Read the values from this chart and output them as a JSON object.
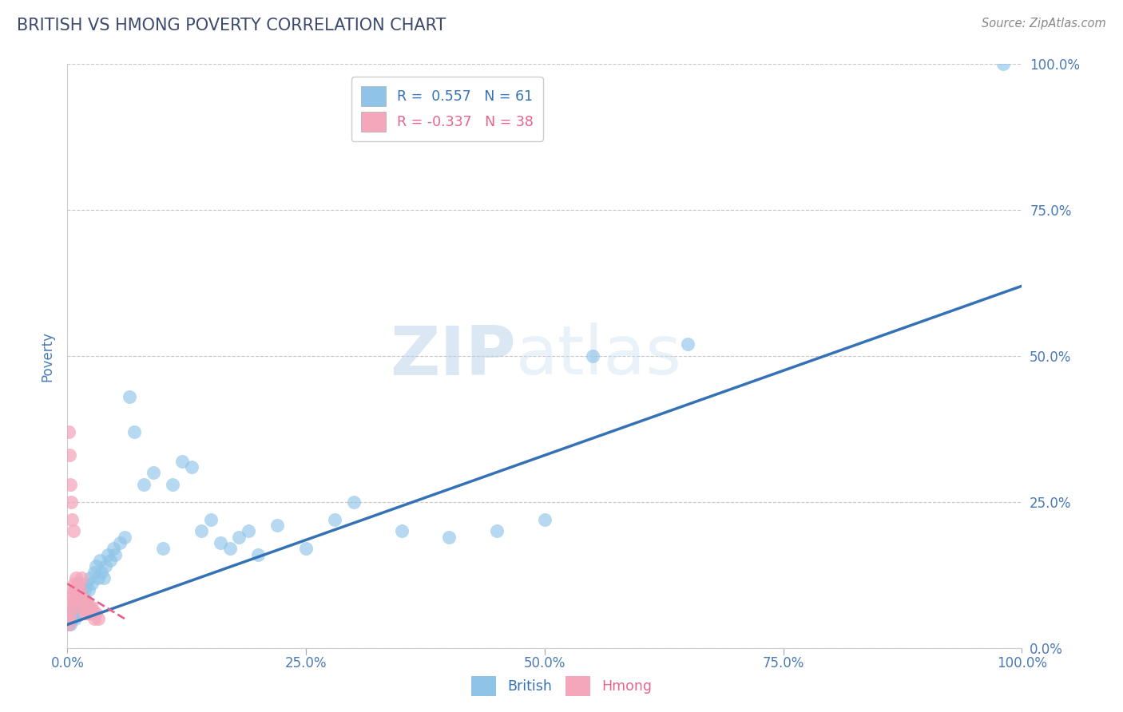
{
  "title": "BRITISH VS HMONG POVERTY CORRELATION CHART",
  "source": "Source: ZipAtlas.com",
  "ylabel": "Poverty",
  "r_british": 0.557,
  "n_british": 61,
  "r_hmong": -0.337,
  "n_hmong": 38,
  "british_color": "#8fc4e8",
  "hmong_color": "#f4a7bb",
  "british_line_color": "#3472b5",
  "hmong_line_color": "#e8638a",
  "title_color": "#3c4a6e",
  "axis_label_color": "#4a7ab5",
  "tick_color": "#4a7ab5",
  "background_color": "#ffffff",
  "grid_color": "#c8c8c8",
  "watermark": "ZIPatlas",
  "british_x": [
    0.001,
    0.002,
    0.003,
    0.004,
    0.005,
    0.006,
    0.007,
    0.008,
    0.009,
    0.01,
    0.011,
    0.012,
    0.013,
    0.014,
    0.015,
    0.016,
    0.018,
    0.019,
    0.02,
    0.022,
    0.024,
    0.026,
    0.028,
    0.03,
    0.032,
    0.034,
    0.036,
    0.038,
    0.04,
    0.042,
    0.045,
    0.048,
    0.05,
    0.055,
    0.06,
    0.065,
    0.07,
    0.08,
    0.09,
    0.1,
    0.11,
    0.12,
    0.13,
    0.14,
    0.15,
    0.16,
    0.17,
    0.18,
    0.19,
    0.2,
    0.22,
    0.25,
    0.28,
    0.3,
    0.35,
    0.4,
    0.45,
    0.5,
    0.55,
    0.65,
    0.98
  ],
  "british_y": [
    0.04,
    0.05,
    0.04,
    0.06,
    0.05,
    0.07,
    0.06,
    0.05,
    0.08,
    0.07,
    0.06,
    0.09,
    0.08,
    0.07,
    0.1,
    0.09,
    0.1,
    0.08,
    0.11,
    0.1,
    0.12,
    0.11,
    0.13,
    0.14,
    0.12,
    0.15,
    0.13,
    0.12,
    0.14,
    0.16,
    0.15,
    0.17,
    0.16,
    0.18,
    0.19,
    0.43,
    0.37,
    0.28,
    0.3,
    0.17,
    0.28,
    0.32,
    0.31,
    0.2,
    0.22,
    0.18,
    0.17,
    0.19,
    0.2,
    0.16,
    0.21,
    0.17,
    0.22,
    0.25,
    0.2,
    0.19,
    0.2,
    0.22,
    0.5,
    0.52,
    1.0
  ],
  "hmong_x": [
    0.001,
    0.001,
    0.002,
    0.002,
    0.003,
    0.003,
    0.003,
    0.004,
    0.004,
    0.005,
    0.005,
    0.006,
    0.006,
    0.007,
    0.007,
    0.008,
    0.009,
    0.01,
    0.011,
    0.012,
    0.013,
    0.014,
    0.015,
    0.016,
    0.017,
    0.018,
    0.019,
    0.02,
    0.021,
    0.022,
    0.023,
    0.024,
    0.025,
    0.026,
    0.027,
    0.028,
    0.03,
    0.032
  ],
  "hmong_y": [
    0.04,
    0.37,
    0.33,
    0.05,
    0.06,
    0.28,
    0.08,
    0.25,
    0.07,
    0.22,
    0.09,
    0.2,
    0.1,
    0.11,
    0.08,
    0.1,
    0.12,
    0.09,
    0.11,
    0.08,
    0.1,
    0.09,
    0.12,
    0.07,
    0.08,
    0.06,
    0.07,
    0.08,
    0.06,
    0.07,
    0.06,
    0.07,
    0.06,
    0.07,
    0.06,
    0.05,
    0.06,
    0.05
  ],
  "brit_line_x0": 0.0,
  "brit_line_y0": 0.04,
  "brit_line_x1": 1.0,
  "brit_line_y1": 0.62,
  "hmong_line_x0": 0.0,
  "hmong_line_y0": 0.11,
  "hmong_line_x1": 0.06,
  "hmong_line_y1": 0.05,
  "xlim": [
    0.0,
    1.0
  ],
  "ylim": [
    0.0,
    1.0
  ],
  "yticks": [
    0.0,
    0.25,
    0.5,
    0.75,
    1.0
  ],
  "ytick_labels": [
    "0.0%",
    "25.0%",
    "50.0%",
    "75.0%",
    "100.0%"
  ],
  "xticks": [
    0.0,
    0.25,
    0.5,
    0.75,
    1.0
  ],
  "xtick_labels": [
    "0.0%",
    "25.0%",
    "50.0%",
    "75.0%",
    "100.0%"
  ]
}
